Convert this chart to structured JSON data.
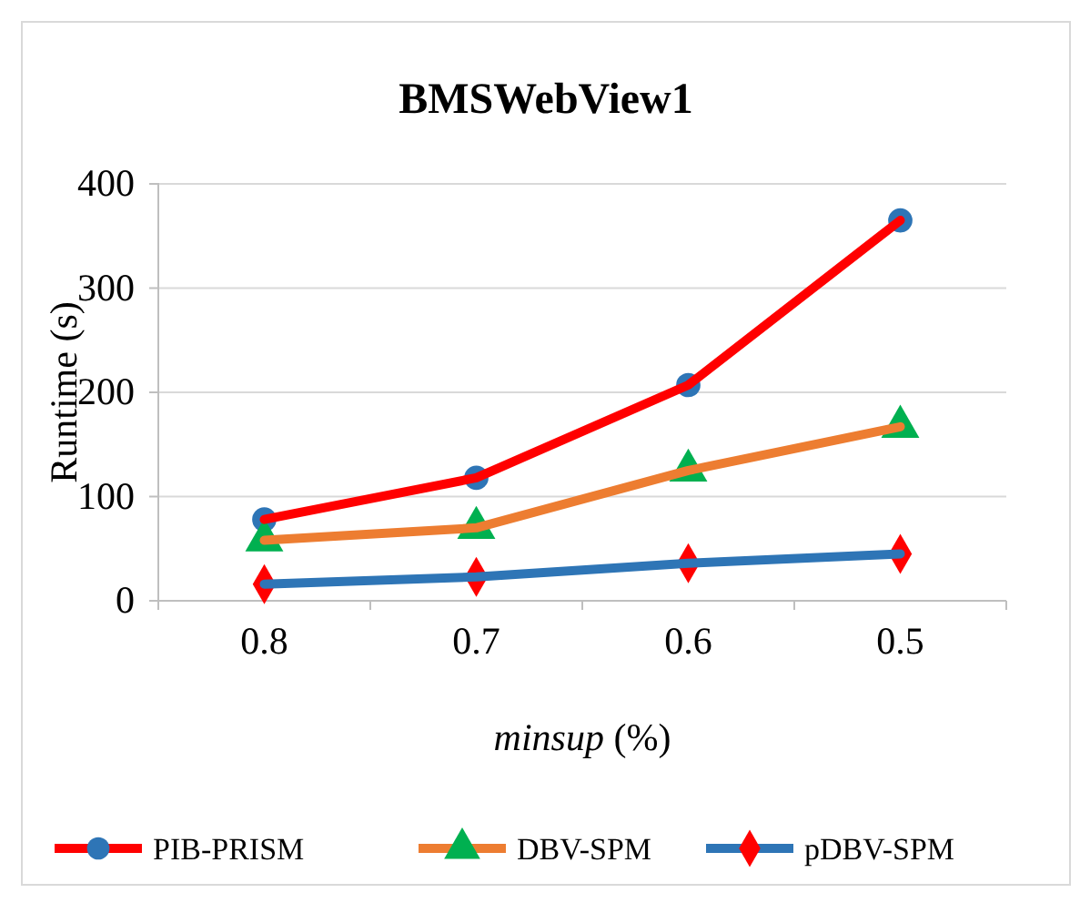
{
  "chart_data": {
    "type": "line",
    "title": "BMSWebView1",
    "xlabel": "minsup (%)",
    "ylabel": "Runtime (s)",
    "categories": [
      "0.8",
      "0.7",
      "0.6",
      "0.5"
    ],
    "series": [
      {
        "name": "PIB-PRISM",
        "color": "#ff0000",
        "marker": "circle",
        "colors": [
          "#2e75b6",
          "#2e75b6",
          "#2e75b6",
          "#2e75b6"
        ],
        "values": [
          78,
          118,
          207,
          365
        ]
      },
      {
        "name": "DBV-SPM",
        "color": "#ed7d31",
        "marker": "triangle",
        "colors": [
          "#00b050",
          "#00b050",
          "#00b050",
          "#00b050"
        ],
        "values": [
          58,
          70,
          125,
          167
        ]
      },
      {
        "name": "pDBV-SPM",
        "color": "#2e75b6",
        "marker": "diamond",
        "colors": [
          "#ff0000",
          "#ff0000",
          "#ff0000",
          "#ff0000"
        ],
        "values": [
          16,
          23,
          36,
          45
        ]
      }
    ],
    "ylim": [
      0,
      400
    ],
    "yticks": [
      0,
      100,
      200,
      300,
      400
    ],
    "grid": "y",
    "legend": "bottom",
    "line_style": "solid"
  }
}
